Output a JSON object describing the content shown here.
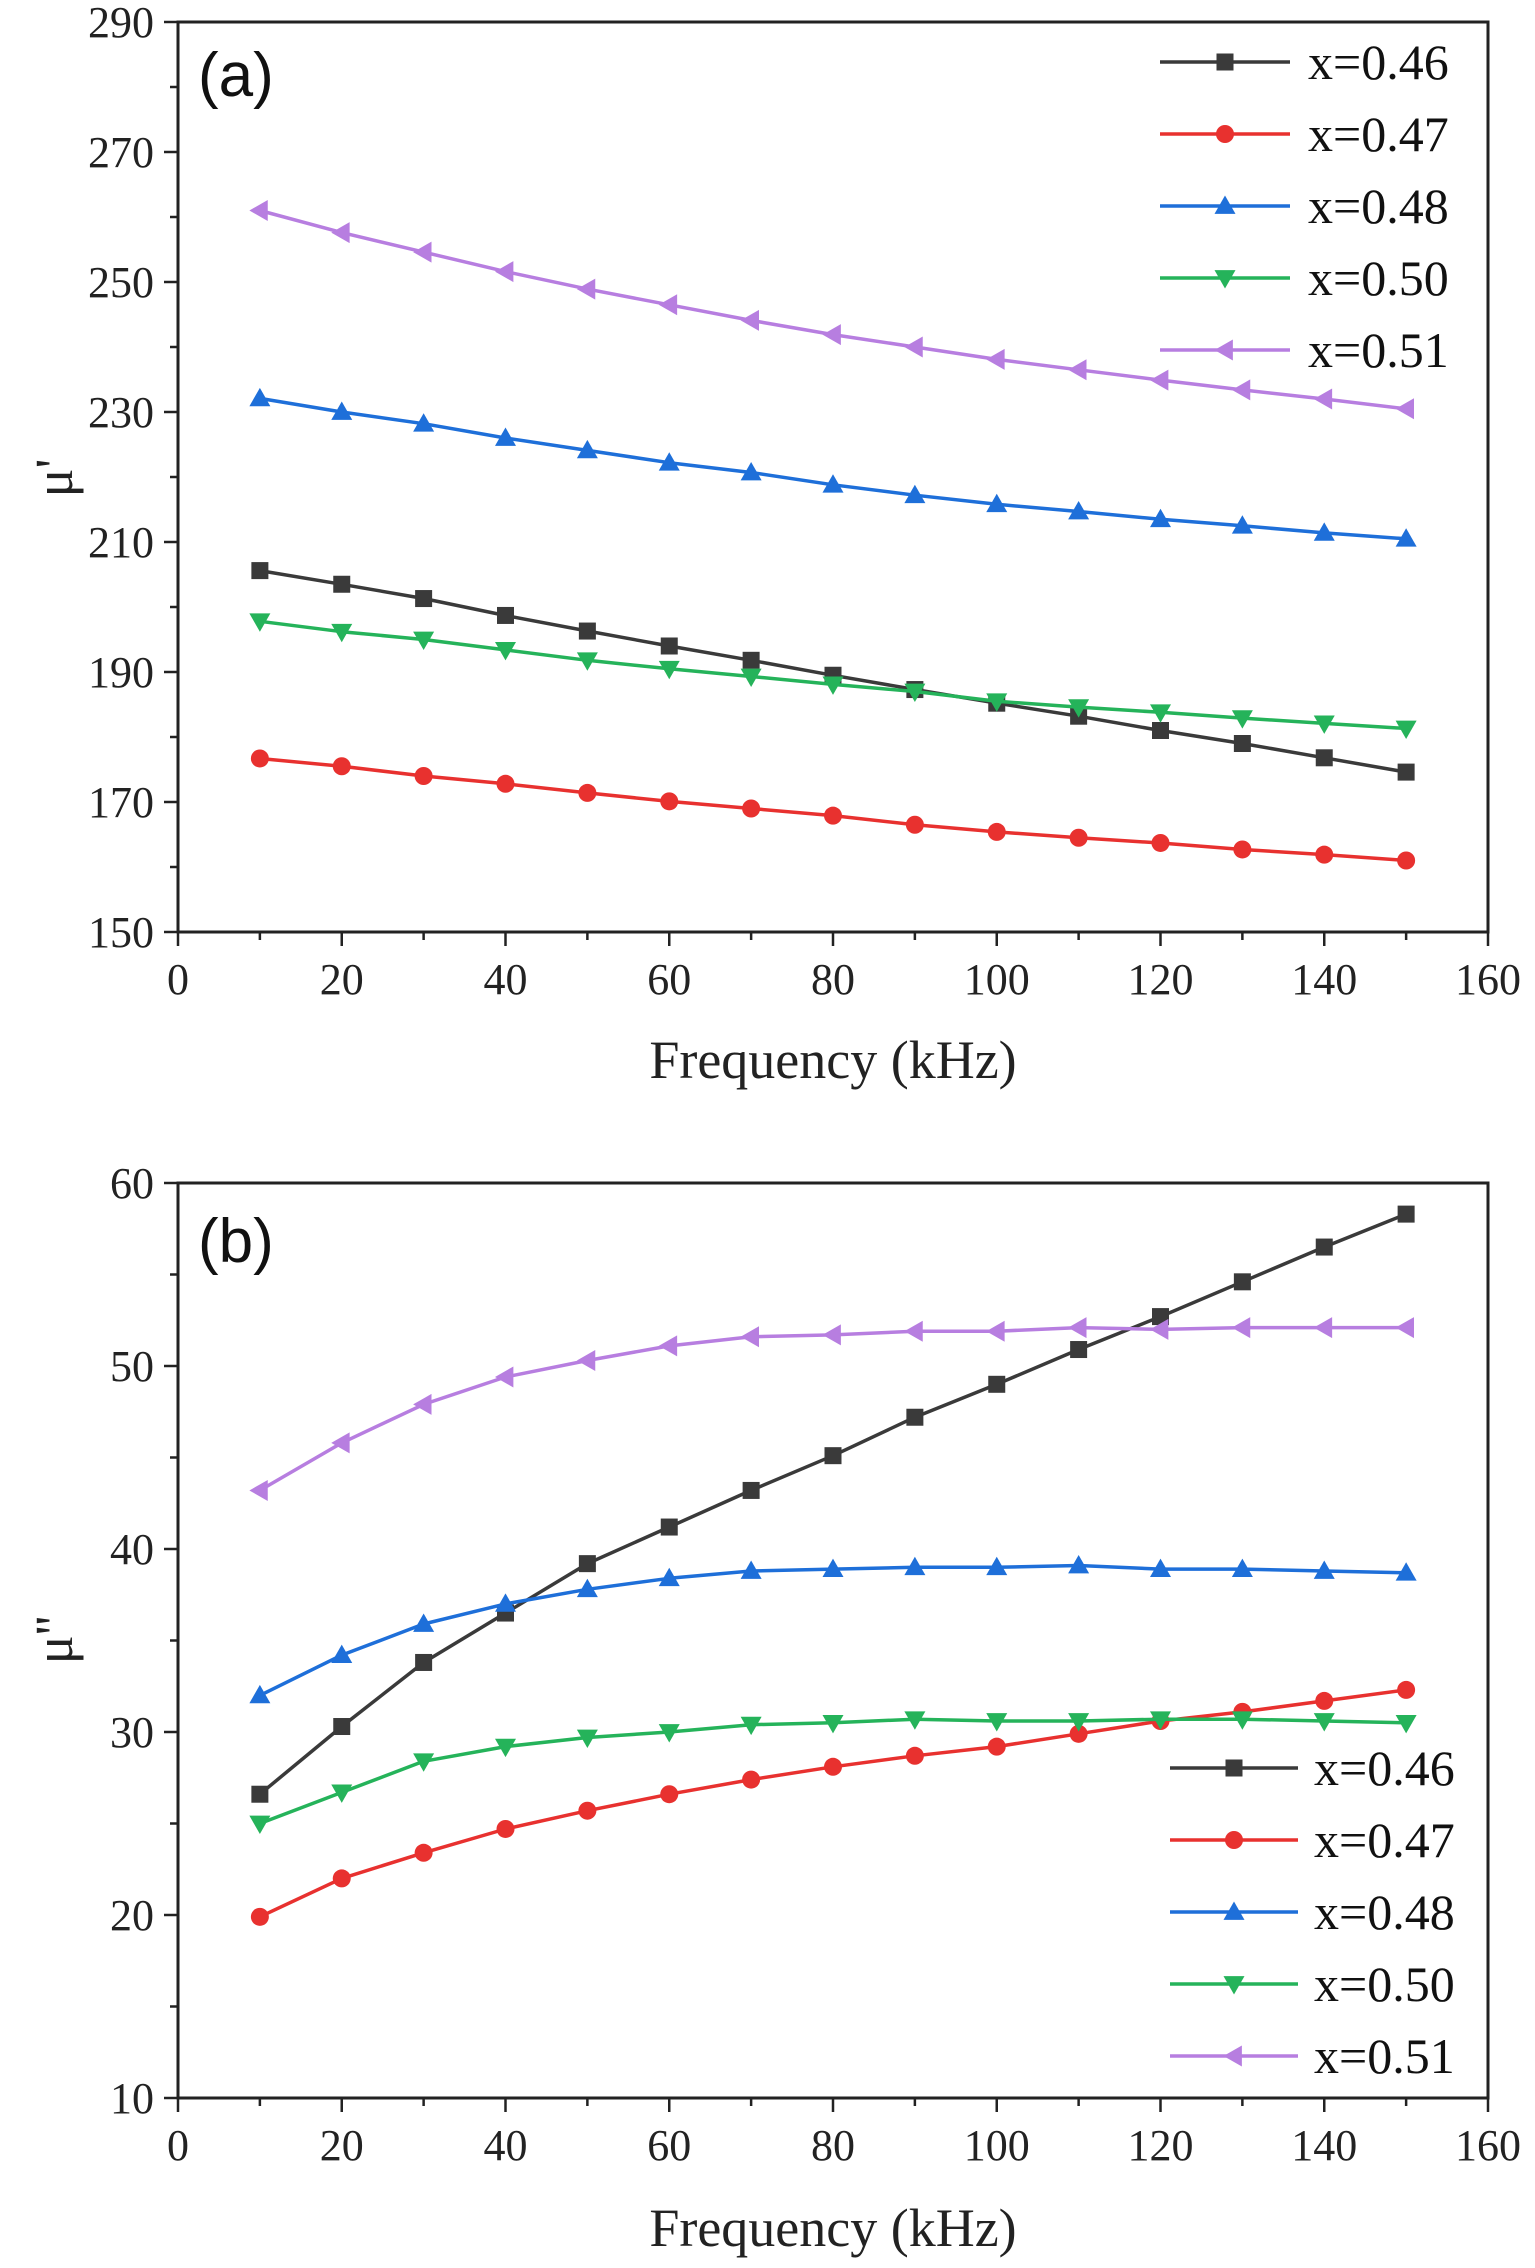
{
  "chart_data": [
    {
      "type": "line",
      "panel_label": "(a)",
      "xlabel": "Frequency (kHz)",
      "ylabel": "μ'",
      "xlim": [
        0,
        160
      ],
      "ylim": [
        150,
        290
      ],
      "xticks": [
        0,
        20,
        40,
        60,
        80,
        100,
        120,
        140,
        160
      ],
      "yticks": [
        150,
        170,
        190,
        210,
        230,
        250,
        270,
        290
      ],
      "legend_position": "top-right",
      "grid": false,
      "x": [
        10,
        20,
        30,
        40,
        50,
        60,
        70,
        80,
        90,
        100,
        110,
        120,
        130,
        140,
        150
      ],
      "series": [
        {
          "name": "x=0.46",
          "color": "#3a3a3a",
          "marker": "square",
          "values": [
            205.6,
            203.5,
            201.3,
            198.7,
            196.3,
            194.0,
            191.8,
            189.5,
            187.3,
            185.2,
            183.2,
            181.0,
            179.0,
            176.8,
            174.6
          ]
        },
        {
          "name": "x=0.47",
          "color": "#e8312f",
          "marker": "circle",
          "values": [
            176.7,
            175.5,
            174.0,
            172.8,
            171.4,
            170.1,
            169.0,
            167.9,
            166.5,
            165.4,
            164.5,
            163.7,
            162.7,
            161.9,
            161.0
          ]
        },
        {
          "name": "x=0.48",
          "color": "#1e6fd9",
          "marker": "triangle-up",
          "values": [
            232.1,
            230.0,
            228.2,
            226.0,
            224.1,
            222.2,
            220.7,
            218.8,
            217.2,
            215.8,
            214.7,
            213.5,
            212.5,
            211.4,
            210.5
          ]
        },
        {
          "name": "x=0.50",
          "color": "#25b35a",
          "marker": "triangle-down",
          "values": [
            197.8,
            196.2,
            195.0,
            193.4,
            191.8,
            190.5,
            189.3,
            188.1,
            187.0,
            185.5,
            184.6,
            183.8,
            182.9,
            182.1,
            181.3
          ]
        },
        {
          "name": "x=0.51",
          "color": "#b77ee0",
          "marker": "triangle-left",
          "values": [
            261.0,
            257.6,
            254.6,
            251.6,
            248.9,
            246.5,
            244.1,
            241.9,
            240.0,
            238.1,
            236.5,
            234.9,
            233.4,
            232.0,
            230.5
          ]
        }
      ]
    },
    {
      "type": "line",
      "panel_label": "(b)",
      "xlabel": "Frequency (kHz)",
      "ylabel": "μ''",
      "xlim": [
        0,
        160
      ],
      "ylim": [
        10,
        60
      ],
      "xticks": [
        0,
        20,
        40,
        60,
        80,
        100,
        120,
        140,
        160
      ],
      "yticks": [
        10,
        20,
        30,
        40,
        50,
        60
      ],
      "legend_position": "bottom-right",
      "grid": false,
      "x": [
        10,
        20,
        30,
        40,
        50,
        60,
        70,
        80,
        90,
        100,
        110,
        120,
        130,
        140,
        150
      ],
      "series": [
        {
          "name": "x=0.46",
          "color": "#3a3a3a",
          "marker": "square",
          "values": [
            26.6,
            30.3,
            33.8,
            36.5,
            39.2,
            41.2,
            43.2,
            45.1,
            47.2,
            49.0,
            50.9,
            52.7,
            54.6,
            56.5,
            58.3
          ]
        },
        {
          "name": "x=0.47",
          "color": "#e8312f",
          "marker": "circle",
          "values": [
            19.9,
            22.0,
            23.4,
            24.7,
            25.7,
            26.6,
            27.4,
            28.1,
            28.7,
            29.2,
            29.9,
            30.6,
            31.1,
            31.7,
            32.3
          ]
        },
        {
          "name": "x=0.48",
          "color": "#1e6fd9",
          "marker": "triangle-up",
          "values": [
            32.0,
            34.2,
            35.9,
            37.0,
            37.8,
            38.4,
            38.8,
            38.9,
            39.0,
            39.0,
            39.1,
            38.9,
            38.9,
            38.8,
            38.7
          ]
        },
        {
          "name": "x=0.50",
          "color": "#25b35a",
          "marker": "triangle-down",
          "values": [
            25.0,
            26.7,
            28.4,
            29.2,
            29.7,
            30.0,
            30.4,
            30.5,
            30.7,
            30.6,
            30.6,
            30.7,
            30.7,
            30.6,
            30.5
          ]
        },
        {
          "name": "x=0.51",
          "color": "#b77ee0",
          "marker": "triangle-left",
          "values": [
            43.2,
            45.8,
            47.9,
            49.4,
            50.3,
            51.1,
            51.6,
            51.7,
            51.9,
            51.9,
            52.1,
            52.0,
            52.1,
            52.1,
            52.1
          ]
        }
      ]
    }
  ]
}
